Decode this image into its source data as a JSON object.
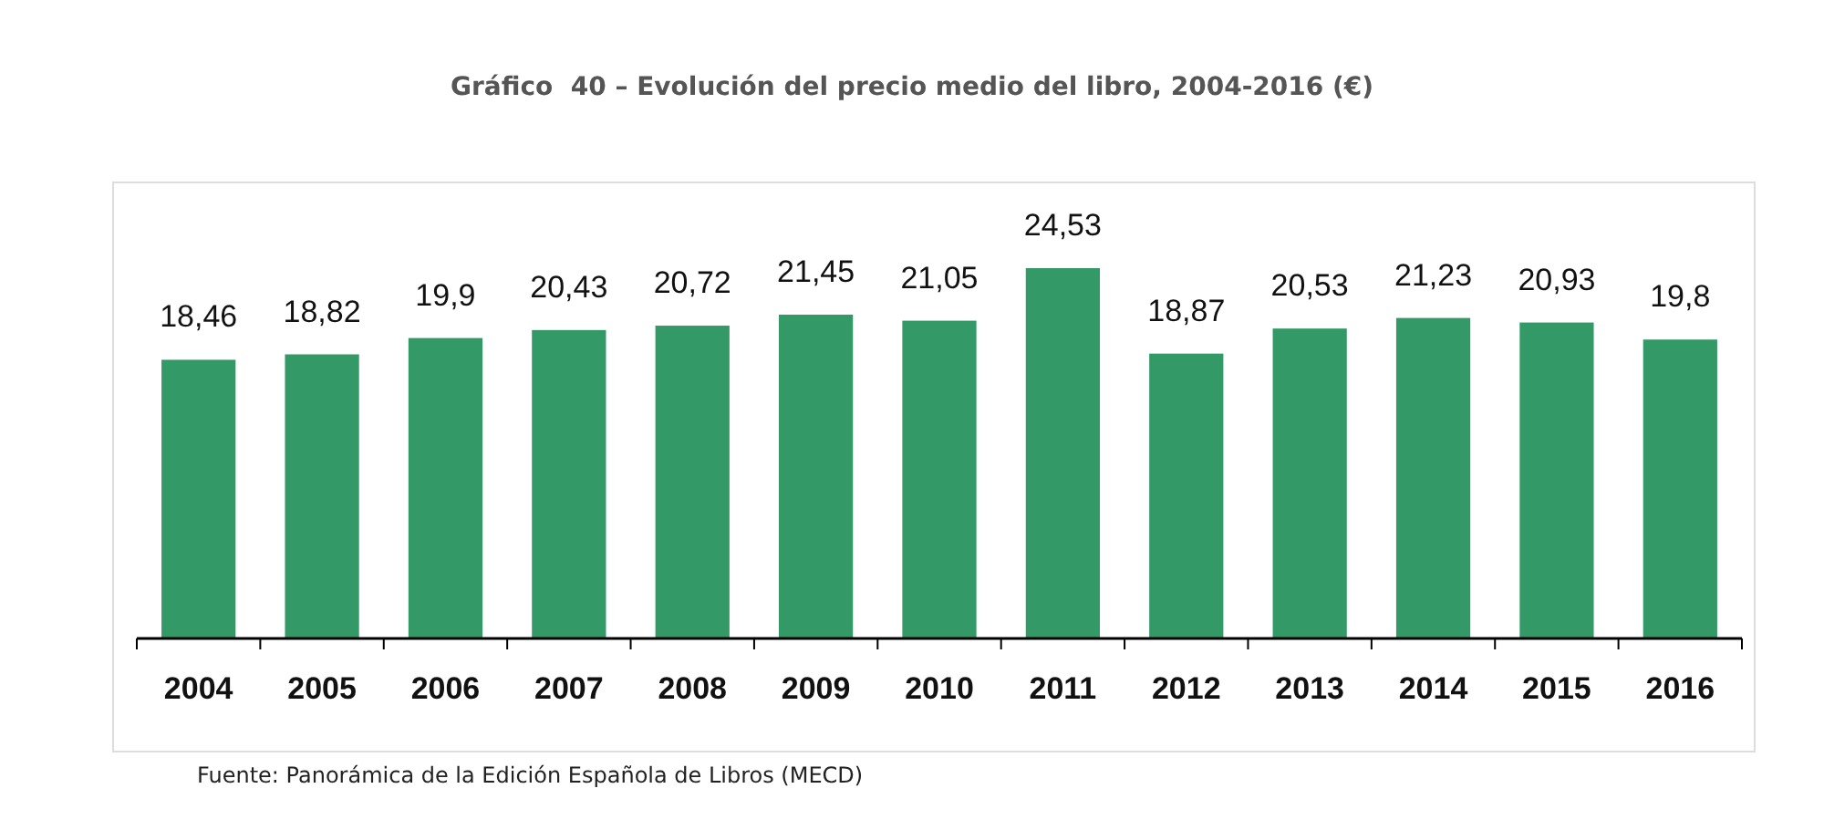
{
  "chart_data": {
    "type": "bar",
    "title": "Gráfico  40 – Evolución del precio medio del libro, 2004-2016 (€)",
    "categories": [
      "2004",
      "2005",
      "2006",
      "2007",
      "2008",
      "2009",
      "2010",
      "2011",
      "2012",
      "2013",
      "2014",
      "2015",
      "2016"
    ],
    "values": [
      18.46,
      18.82,
      19.9,
      20.43,
      20.72,
      21.45,
      21.05,
      24.53,
      18.87,
      20.53,
      21.23,
      20.93,
      19.8
    ],
    "value_labels": [
      "18,46",
      "18,82",
      "19,9",
      "20,43",
      "20,72",
      "21,45",
      "21,05",
      "24,53",
      "18,87",
      "20,53",
      "21,23",
      "20,93",
      "19,8"
    ],
    "color": "#339966",
    "annotations": [
      "Fuente: Panorámica de la Edición Española de Libros (MECD)"
    ]
  }
}
